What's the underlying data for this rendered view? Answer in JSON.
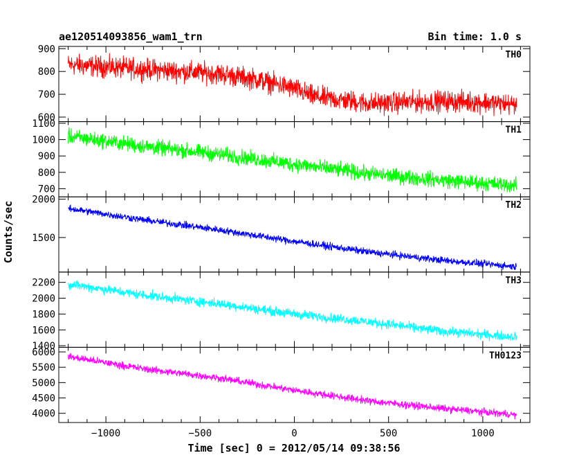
{
  "header": {
    "title": "ae120514093856_wam1_trn",
    "bin_time": "Bin time: 1.0 s"
  },
  "chart_data": [
    {
      "type": "line",
      "panel": "TH0",
      "color": "#ff0000",
      "xlim": [
        -1250,
        1250
      ],
      "ylim": [
        580,
        910
      ],
      "yticks": [
        600,
        700,
        800,
        900
      ],
      "ytick_labels": [
        "600",
        "700",
        "800",
        "900"
      ],
      "series": [
        {
          "name": "TH0",
          "x": [
            -1200,
            -1000,
            -800,
            -600,
            -400,
            -200,
            0,
            100,
            300,
            400,
            600,
            800,
            1000,
            1180
          ],
          "values": [
            830,
            820,
            810,
            800,
            790,
            765,
            725,
            690,
            670,
            660,
            665,
            670,
            665,
            655
          ],
          "noise": 35
        }
      ]
    },
    {
      "type": "line",
      "panel": "TH1",
      "color": "#00ff00",
      "xlim": [
        -1250,
        1250
      ],
      "ylim": [
        650,
        1110
      ],
      "yticks": [
        700,
        800,
        900,
        1000,
        1100
      ],
      "ytick_labels": [
        "700",
        "800",
        "900",
        "1000",
        "1100"
      ],
      "series": [
        {
          "name": "TH1",
          "x": [
            -1200,
            -800,
            -400,
            0,
            400,
            800,
            1180
          ],
          "values": [
            1020,
            960,
            910,
            850,
            790,
            750,
            720
          ],
          "noise": 35
        }
      ]
    },
    {
      "type": "line",
      "panel": "TH2",
      "color": "#0000ff",
      "xlim": [
        -1250,
        1250
      ],
      "ylim": [
        1050,
        2030
      ],
      "yticks": [
        1500,
        2000
      ],
      "ytick_labels": [
        "1500",
        "2000"
      ],
      "series": [
        {
          "name": "TH2",
          "x": [
            -1200,
            -800,
            -400,
            0,
            400,
            800,
            1180
          ],
          "values": [
            1880,
            1730,
            1600,
            1450,
            1310,
            1200,
            1120
          ],
          "noise": 35
        }
      ]
    },
    {
      "type": "line",
      "panel": "TH3",
      "color": "#00ffff",
      "xlim": [
        -1250,
        1250
      ],
      "ylim": [
        1380,
        2330
      ],
      "yticks": [
        1400,
        1600,
        1800,
        2000,
        2200
      ],
      "ytick_labels": [
        "1400",
        "1600",
        "1800",
        "2000",
        "2200"
      ],
      "series": [
        {
          "name": "TH3",
          "x": [
            -1200,
            -800,
            -400,
            0,
            400,
            800,
            1180
          ],
          "values": [
            2180,
            2040,
            1930,
            1800,
            1700,
            1580,
            1510
          ],
          "noise": 45
        }
      ]
    },
    {
      "type": "line",
      "panel": "TH0123",
      "color": "#ff00ff",
      "xlim": [
        -1250,
        1250
      ],
      "ylim": [
        3700,
        6150
      ],
      "yticks": [
        4000,
        4500,
        5000,
        5500,
        6000
      ],
      "ytick_labels": [
        "4000",
        "4500",
        "5000",
        "5500",
        "6000"
      ],
      "series": [
        {
          "name": "TH0123",
          "x": [
            -1200,
            -800,
            -400,
            0,
            400,
            800,
            1180
          ],
          "values": [
            5850,
            5450,
            5150,
            4750,
            4400,
            4150,
            3950
          ],
          "noise": 90
        }
      ]
    }
  ],
  "axes": {
    "xticks": [
      -1000,
      -500,
      0,
      500,
      1000
    ],
    "xtick_labels": [
      "−1000",
      "−500",
      "0",
      "500",
      "1000"
    ],
    "xlabel": "Time [sec] 0 = 2012/05/14 09:38:56",
    "ylabel": "Counts/sec"
  }
}
